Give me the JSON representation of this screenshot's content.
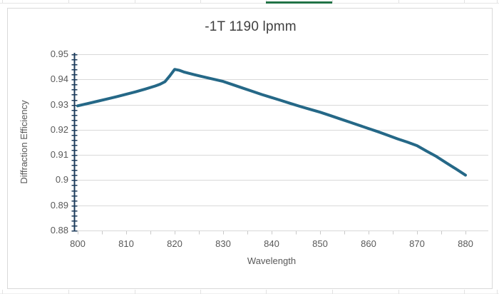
{
  "colors": {
    "series_line": "#256887",
    "y_axis_line": "#1e3c5c",
    "gridline": "#d9d9d9",
    "x_axis_line": "#d9d9d9",
    "x_tick": "#c9c9c9",
    "tick_label_text": "#595959",
    "title_text": "#404040",
    "selection_green": "#217346"
  },
  "chart_data": {
    "type": "line",
    "title": "-1T 1190 lpmm",
    "xlabel": "Wavelength",
    "ylabel": "Diffraction Efficiency",
    "xlim": [
      800,
      880
    ],
    "ylim": [
      0.88,
      0.95
    ],
    "grid": "horizontal",
    "legend": "none",
    "x_axis": {
      "tick_labels": [
        "800",
        "810",
        "820",
        "830",
        "840",
        "850",
        "860",
        "870",
        "880"
      ],
      "tick_values": [
        800,
        810,
        820,
        830,
        840,
        850,
        860,
        870,
        880
      ],
      "minor_tick_step": 5
    },
    "y_axis": {
      "tick_labels": [
        "0.95",
        "0.94",
        "0.93",
        "0.92",
        "0.91",
        "0.9",
        "0.89",
        "0.88"
      ],
      "tick_values": [
        0.95,
        0.94,
        0.93,
        0.92,
        0.91,
        0.9,
        0.89,
        0.88
      ],
      "gridline_values": [
        0.95,
        0.94,
        0.93,
        0.92,
        0.91,
        0.9,
        0.89
      ],
      "major_step": 0.01,
      "minor_tick_step": 0.002
    },
    "series": [
      {
        "x": [
          800,
          802,
          804,
          806,
          808,
          810,
          812,
          814,
          816,
          817,
          818,
          819,
          820,
          821,
          822,
          824,
          826,
          828,
          830,
          832,
          834,
          836,
          838,
          840,
          842,
          844,
          846,
          848,
          850,
          852,
          854,
          856,
          858,
          860,
          862,
          864,
          866,
          868,
          870,
          872,
          874,
          876,
          878,
          880
        ],
        "y": [
          0.9295,
          0.9304,
          0.9313,
          0.9322,
          0.9331,
          0.9341,
          0.9351,
          0.9362,
          0.9374,
          0.9381,
          0.9391,
          0.9414,
          0.944,
          0.9436,
          0.9429,
          0.9419,
          0.941,
          0.9401,
          0.9392,
          0.9379,
          0.9366,
          0.9353,
          0.934,
          0.9328,
          0.9316,
          0.9304,
          0.9292,
          0.9281,
          0.927,
          0.9257,
          0.9244,
          0.9231,
          0.9218,
          0.9205,
          0.9192,
          0.9178,
          0.9164,
          0.9151,
          0.9137,
          0.9115,
          0.9094,
          0.9069,
          0.9045,
          0.902
        ]
      }
    ]
  }
}
